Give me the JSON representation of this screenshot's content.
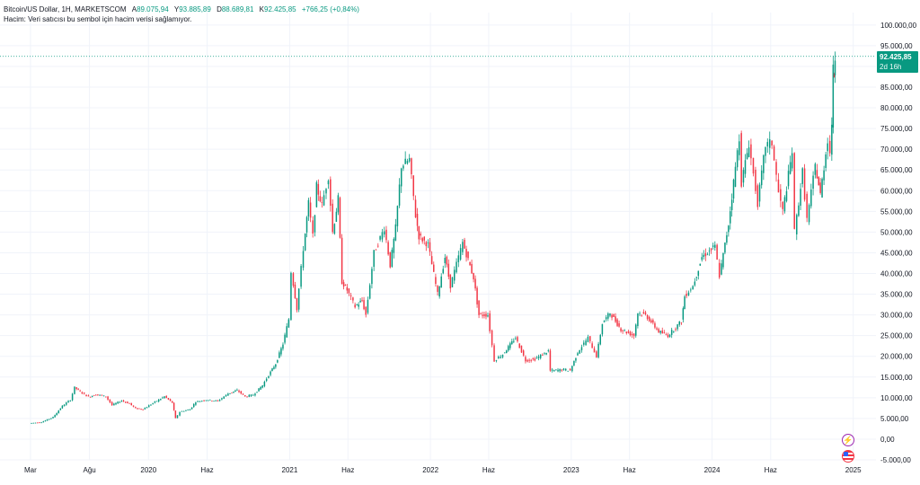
{
  "legend": {
    "symbol": "Bitcoin/US Dollar, 1H, MARKETSCOM",
    "open_label": "A",
    "open": "89.075,94",
    "high_label": "Y",
    "high": "93.885,89",
    "low_label": "D",
    "low": "88.689,81",
    "close_label": "K",
    "close": "92.425,85",
    "change": "+766,25 (+0,84%)",
    "volume_note": "Hacim: Veri satıcısı bu sembol için hacim verisi sağlamıyor."
  },
  "price_badge": {
    "price": "92.425,85",
    "countdown": "2d 16h"
  },
  "icons": {
    "event_bolt": "lightning-bolt-icon",
    "event_flag": "us-flag-icon"
  },
  "colors": {
    "up": "#089981",
    "down": "#f23645",
    "grid": "#f0f3fa",
    "text": "#131722"
  },
  "chart_data": {
    "type": "candlestick",
    "title": "Bitcoin/US Dollar, 1H, MARKETSCOM",
    "y_ticks": [
      -5000,
      0,
      5000,
      10000,
      15000,
      20000,
      25000,
      30000,
      35000,
      40000,
      45000,
      50000,
      55000,
      60000,
      65000,
      70000,
      75000,
      80000,
      85000,
      90000,
      95000,
      100000
    ],
    "y_tick_labels": [
      "-5.000,00",
      "0,00",
      "5.000,00",
      "10.000,00",
      "15.000,00",
      "20.000,00",
      "25.000,00",
      "30.000,00",
      "35.000,00",
      "40.000,00",
      "45.000,00",
      "50.000,00",
      "55.000,00",
      "60.000,00",
      "65.000,00",
      "70.000,00",
      "75.000,00",
      "80.000,00",
      "85.000,00",
      "90.000,00",
      "95.000,00",
      "100.000,00"
    ],
    "ylim": [
      -5000,
      103000
    ],
    "x_ticks": [
      "2019-03-01",
      "2019-08-01",
      "2020-01-01",
      "2020-06-01",
      "2021-01-01",
      "2021-06-01",
      "2022-01-01",
      "2022-06-01",
      "2023-01-01",
      "2023-06-01",
      "2024-01-01",
      "2024-06-01",
      "2025-01-01"
    ],
    "x_tick_labels": [
      "Mar",
      "Ağu",
      "2020",
      "Haz",
      "2021",
      "Haz",
      "2022",
      "Haz",
      "2023",
      "Haz",
      "2024",
      "Haz",
      "2025"
    ],
    "xlim": [
      "2018-12-12",
      "2025-03-01"
    ],
    "last_price": 92425.85,
    "series": [
      {
        "date": "2019-03-01",
        "close": 3850
      },
      {
        "date": "2019-04-01",
        "close": 4100
      },
      {
        "date": "2019-05-01",
        "close": 5300
      },
      {
        "date": "2019-05-25",
        "close": 8000
      },
      {
        "date": "2019-06-15",
        "close": 9500
      },
      {
        "date": "2019-06-26",
        "close": 12500
      },
      {
        "date": "2019-07-10",
        "close": 11500
      },
      {
        "date": "2019-08-01",
        "close": 10200
      },
      {
        "date": "2019-08-20",
        "close": 10800
      },
      {
        "date": "2019-09-15",
        "close": 10300
      },
      {
        "date": "2019-10-01",
        "close": 8200
      },
      {
        "date": "2019-10-26",
        "close": 9300
      },
      {
        "date": "2019-11-15",
        "close": 8600
      },
      {
        "date": "2019-12-01",
        "close": 7400
      },
      {
        "date": "2019-12-20",
        "close": 7200
      },
      {
        "date": "2020-01-15",
        "close": 8700
      },
      {
        "date": "2020-02-14",
        "close": 10300
      },
      {
        "date": "2020-03-05",
        "close": 8800
      },
      {
        "date": "2020-03-13",
        "close": 5000
      },
      {
        "date": "2020-03-25",
        "close": 6600
      },
      {
        "date": "2020-04-20",
        "close": 7200
      },
      {
        "date": "2020-05-05",
        "close": 9000
      },
      {
        "date": "2020-06-01",
        "close": 9500
      },
      {
        "date": "2020-07-01",
        "close": 9200
      },
      {
        "date": "2020-07-28",
        "close": 11000
      },
      {
        "date": "2020-08-20",
        "close": 11800
      },
      {
        "date": "2020-09-10",
        "close": 10300
      },
      {
        "date": "2020-10-01",
        "close": 10700
      },
      {
        "date": "2020-10-25",
        "close": 13000
      },
      {
        "date": "2020-11-10",
        "close": 15500
      },
      {
        "date": "2020-11-28",
        "close": 18200
      },
      {
        "date": "2020-12-17",
        "close": 23000
      },
      {
        "date": "2021-01-01",
        "close": 29000
      },
      {
        "date": "2021-01-08",
        "close": 40500
      },
      {
        "date": "2021-01-22",
        "close": 31500
      },
      {
        "date": "2021-02-08",
        "close": 46000
      },
      {
        "date": "2021-02-21",
        "close": 57000
      },
      {
        "date": "2021-03-05",
        "close": 49000
      },
      {
        "date": "2021-03-14",
        "close": 61000
      },
      {
        "date": "2021-03-28",
        "close": 56500
      },
      {
        "date": "2021-04-14",
        "close": 63500
      },
      {
        "date": "2021-04-25",
        "close": 50000
      },
      {
        "date": "2021-05-09",
        "close": 58000
      },
      {
        "date": "2021-05-19",
        "close": 38000
      },
      {
        "date": "2021-06-01",
        "close": 36000
      },
      {
        "date": "2021-06-22",
        "close": 32000
      },
      {
        "date": "2021-07-10",
        "close": 33500
      },
      {
        "date": "2021-07-20",
        "close": 30000
      },
      {
        "date": "2021-08-10",
        "close": 45000
      },
      {
        "date": "2021-09-06",
        "close": 51000
      },
      {
        "date": "2021-09-21",
        "close": 42000
      },
      {
        "date": "2021-10-05",
        "close": 51000
      },
      {
        "date": "2021-10-20",
        "close": 66000
      },
      {
        "date": "2021-11-10",
        "close": 67500
      },
      {
        "date": "2021-11-26",
        "close": 54000
      },
      {
        "date": "2021-12-04",
        "close": 49000
      },
      {
        "date": "2021-12-28",
        "close": 47000
      },
      {
        "date": "2022-01-22",
        "close": 35000
      },
      {
        "date": "2022-02-10",
        "close": 44000
      },
      {
        "date": "2022-02-24",
        "close": 37000
      },
      {
        "date": "2022-03-28",
        "close": 47500
      },
      {
        "date": "2022-04-25",
        "close": 39000
      },
      {
        "date": "2022-05-09",
        "close": 30000
      },
      {
        "date": "2022-06-01",
        "close": 30000
      },
      {
        "date": "2022-06-18",
        "close": 19000
      },
      {
        "date": "2022-07-10",
        "close": 20500
      },
      {
        "date": "2022-08-12",
        "close": 24500
      },
      {
        "date": "2022-09-07",
        "close": 19000
      },
      {
        "date": "2022-10-01",
        "close": 19300
      },
      {
        "date": "2022-11-05",
        "close": 21300
      },
      {
        "date": "2022-11-10",
        "close": 16500
      },
      {
        "date": "2022-12-15",
        "close": 16800
      },
      {
        "date": "2023-01-01",
        "close": 16600
      },
      {
        "date": "2023-01-20",
        "close": 21000
      },
      {
        "date": "2023-02-16",
        "close": 24500
      },
      {
        "date": "2023-03-10",
        "close": 20000
      },
      {
        "date": "2023-03-25",
        "close": 28000
      },
      {
        "date": "2023-04-14",
        "close": 30500
      },
      {
        "date": "2023-05-12",
        "close": 26500
      },
      {
        "date": "2023-06-15",
        "close": 25000
      },
      {
        "date": "2023-06-25",
        "close": 30500
      },
      {
        "date": "2023-07-15",
        "close": 30000
      },
      {
        "date": "2023-08-18",
        "close": 26000
      },
      {
        "date": "2023-09-11",
        "close": 25000
      },
      {
        "date": "2023-10-16",
        "close": 28500
      },
      {
        "date": "2023-10-24",
        "close": 34500
      },
      {
        "date": "2023-11-15",
        "close": 37000
      },
      {
        "date": "2023-12-08",
        "close": 44000
      },
      {
        "date": "2024-01-11",
        "close": 46500
      },
      {
        "date": "2024-01-23",
        "close": 39500
      },
      {
        "date": "2024-02-15",
        "close": 52000
      },
      {
        "date": "2024-02-28",
        "close": 62000
      },
      {
        "date": "2024-03-14",
        "close": 73000
      },
      {
        "date": "2024-03-20",
        "close": 62000
      },
      {
        "date": "2024-04-08",
        "close": 71500
      },
      {
        "date": "2024-04-20",
        "close": 64000
      },
      {
        "date": "2024-05-01",
        "close": 57000
      },
      {
        "date": "2024-05-21",
        "close": 71000
      },
      {
        "date": "2024-06-07",
        "close": 71500
      },
      {
        "date": "2024-06-24",
        "close": 59500
      },
      {
        "date": "2024-07-05",
        "close": 55000
      },
      {
        "date": "2024-07-29",
        "close": 69500
      },
      {
        "date": "2024-08-05",
        "close": 50000
      },
      {
        "date": "2024-08-25",
        "close": 64500
      },
      {
        "date": "2024-09-06",
        "close": 53000
      },
      {
        "date": "2024-09-27",
        "close": 66000
      },
      {
        "date": "2024-10-10",
        "close": 59000
      },
      {
        "date": "2024-10-29",
        "close": 72500
      },
      {
        "date": "2024-11-05",
        "close": 69000
      },
      {
        "date": "2024-11-08",
        "close": 76500
      },
      {
        "date": "2024-11-12",
        "close": 89000
      },
      {
        "date": "2024-11-14",
        "close": 88000
      },
      {
        "date": "2024-11-16",
        "close": 92425.85
      }
    ]
  }
}
